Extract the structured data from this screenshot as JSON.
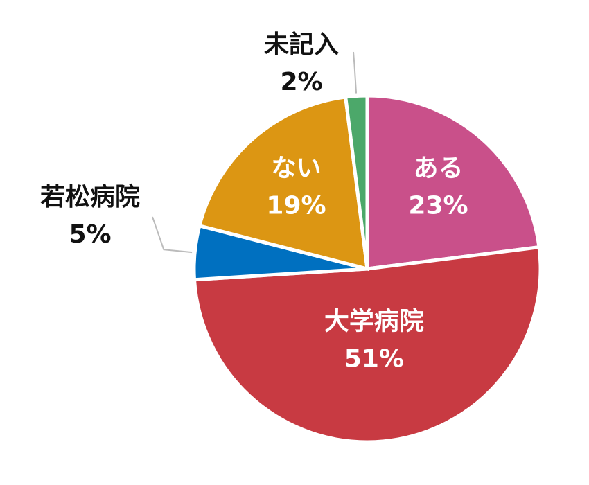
{
  "chart_data": {
    "type": "pie",
    "categories": [
      "ある",
      "大学病院",
      "若松病院",
      "ない",
      "未記入"
    ],
    "values": [
      23,
      51,
      5,
      19,
      2
    ],
    "value_labels": [
      "23%",
      "51%",
      "5%",
      "19%",
      "2%"
    ],
    "colors": [
      "#c9508a",
      "#c83a42",
      "#0070c0",
      "#dc9613",
      "#4ca86a"
    ]
  }
}
